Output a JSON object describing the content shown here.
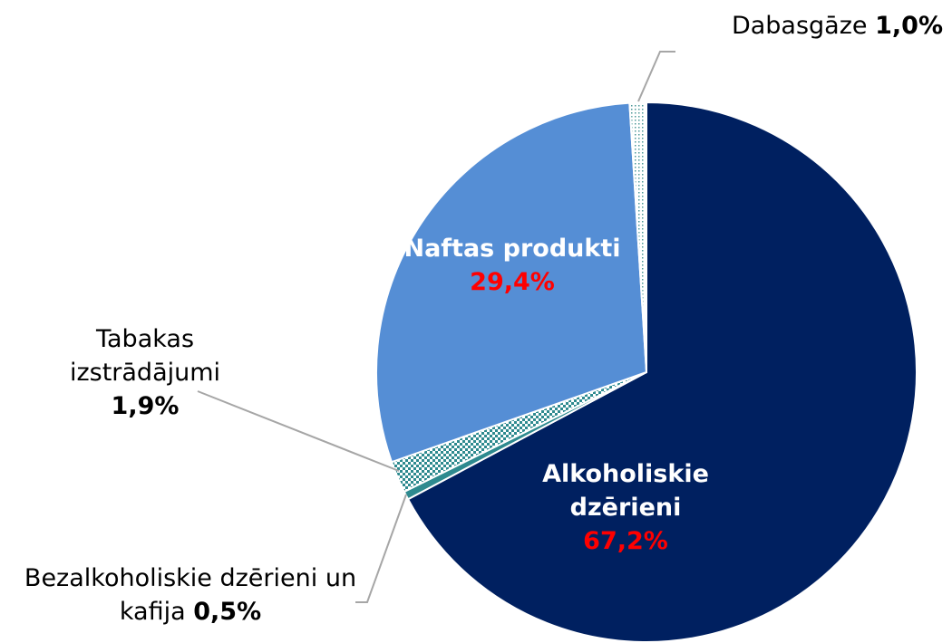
{
  "chart_data": {
    "type": "pie",
    "categories": [
      "Alkoholiskie dzērieni",
      "Bezalkoholiskie dzērieni un kafija",
      "Tabakas izstrādājumi",
      "Naftas produkti",
      "Dabasgāze"
    ],
    "values": [
      67.2,
      0.5,
      1.9,
      29.4,
      1.0
    ],
    "value_labels": [
      "67,2%",
      "0,5%",
      "1,9%",
      "29,4%",
      "1,0%"
    ],
    "colors": [
      "#002060",
      "#2e8a8f",
      "#2e8a8f",
      "#558ed5",
      "#4f9a9a"
    ],
    "patterns": [
      null,
      null,
      "checker",
      null,
      "dots"
    ]
  }
}
